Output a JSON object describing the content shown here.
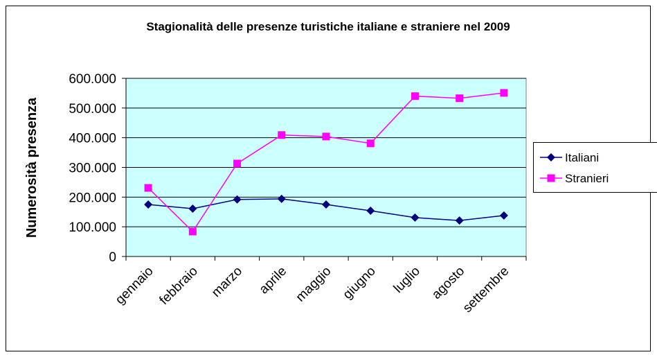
{
  "chart_data": {
    "type": "line",
    "title": "Stagionalità delle presenze turistiche italiane e straniere nel 2009",
    "y_label": "Numerosità presenza",
    "categories": [
      "gennaio",
      "febbraio",
      "marzo",
      "aprile",
      "maggio",
      "giugno",
      "luglio",
      "agosto",
      "settembre"
    ],
    "series": [
      {
        "name": "Italiani",
        "color": "#000080",
        "marker": "diamond",
        "values": [
          175000,
          161000,
          192000,
          194000,
          175000,
          154000,
          131000,
          121000,
          138000
        ]
      },
      {
        "name": "Stranieri",
        "color": "#ff00ff",
        "marker": "square",
        "values": [
          231000,
          84000,
          313000,
          409000,
          404000,
          381000,
          540000,
          533000,
          551000
        ]
      }
    ],
    "ylim": [
      0,
      600000
    ],
    "yticks": [
      0,
      {
        "value": 100000,
        "label": "100.000"
      },
      {
        "value": 200000,
        "label": "200.000"
      },
      {
        "value": 300000,
        "label": "300.000"
      },
      {
        "value": 400000,
        "label": "400.000"
      },
      {
        "value": 500000,
        "label": "500.000"
      },
      {
        "value": 600000,
        "label": "600.000"
      }
    ],
    "grid": true,
    "plot_background": "#ccffff",
    "legend": "right"
  }
}
